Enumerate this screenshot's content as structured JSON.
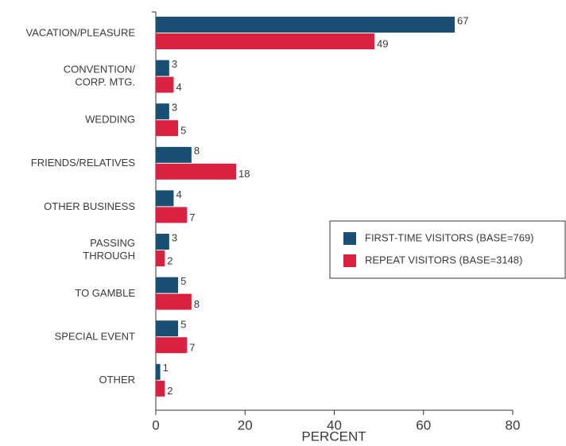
{
  "chart_data": {
    "type": "bar",
    "orientation": "horizontal",
    "x_label": "PERCENT",
    "categories": [
      "VACATION/PLEASURE",
      "CONVENTION/\nCORP. MTG.",
      "WEDDING",
      "FRIENDS/RELATIVES",
      "OTHER BUSINESS",
      "PASSING\nTHROUGH",
      "TO GAMBLE",
      "SPECIAL EVENT",
      "OTHER"
    ],
    "series": [
      {
        "name": "FIRST-TIME VISITORS (BASE=769)",
        "color": "#1b4e73",
        "values": [
          67,
          3,
          3,
          8,
          4,
          3,
          5,
          5,
          1
        ]
      },
      {
        "name": "REPEAT VISITORS (BASE=3148)",
        "color": "#d9223f",
        "values": [
          49,
          4,
          5,
          18,
          7,
          2,
          8,
          7,
          2
        ]
      }
    ],
    "xlim": [
      0,
      80
    ],
    "xticks": [
      0,
      20,
      40,
      60,
      80
    ],
    "legend": "right"
  }
}
